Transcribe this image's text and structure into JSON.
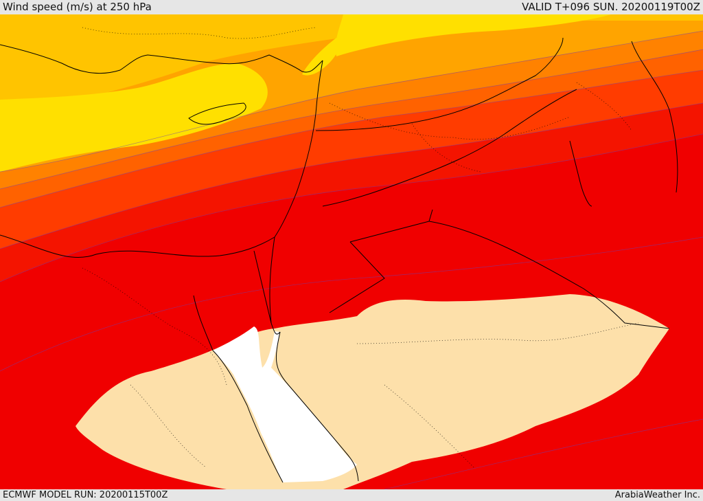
{
  "header": {
    "title": "Wind speed (m/s) at 250 hPa",
    "valid_time": "VALID T+096 SUN. 20200119T00Z"
  },
  "footer": {
    "model_run": "ECMWF MODEL RUN: 20200115T00Z",
    "provider": "ArabiaWeather Inc."
  },
  "map": {
    "variable": "wind-speed",
    "level": "250 hPa",
    "colors": {
      "band_1": "#ffe000",
      "band_2": "#ffc400",
      "band_3": "#ffa400",
      "band_4": "#ff8200",
      "band_5": "#ff6200",
      "band_6": "#ff3c00",
      "band_7": "#f41400",
      "band_8": "#f00000",
      "calm": "#fde0aa",
      "sea_gap": "#ffffff",
      "coastline": "#000000",
      "contour": "#6b3fb3"
    }
  }
}
